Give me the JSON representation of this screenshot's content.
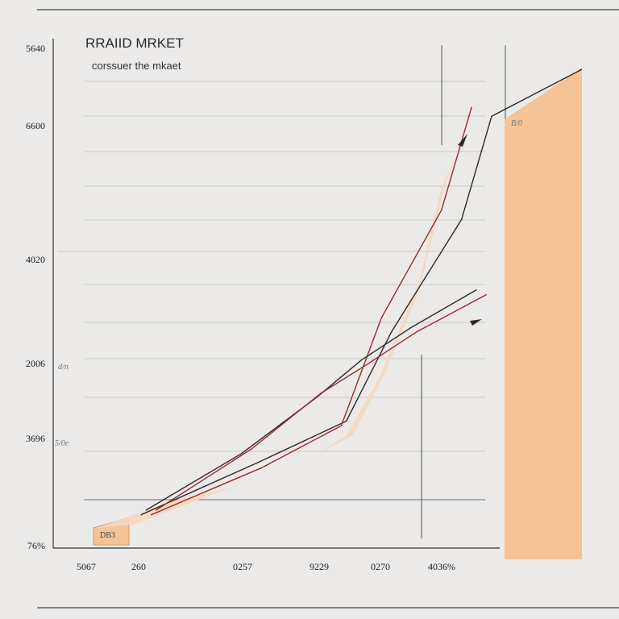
{
  "chart_data": {
    "type": "line",
    "title": "RRAIID MRKET",
    "subtitle": "corssuer the mkaet",
    "y_tick_labels": [
      "76%",
      "3696",
      "2006",
      "4020",
      "6600",
      "5640"
    ],
    "x_tick_labels": [
      "5067",
      "260",
      "0257",
      "9229",
      "0270",
      "4036%"
    ],
    "annotations": [
      {
        "text": "B/0",
        "tone": "inline"
      },
      {
        "text": "DB3",
        "tone": "box"
      },
      {
        "text": "d/n",
        "tone": "faint"
      },
      {
        "text": "5/0e",
        "tone": "faint"
      }
    ],
    "series": [
      {
        "values": [
          [
            0.12,
            0.05
          ],
          [
            0.35,
            0.16
          ],
          [
            0.53,
            0.25
          ],
          [
            0.62,
            0.44
          ],
          [
            0.76,
            0.68
          ],
          [
            0.82,
            0.9
          ],
          [
            1.0,
            1.0
          ]
        ]
      },
      {
        "values": [
          [
            0.14,
            0.05
          ],
          [
            0.36,
            0.15
          ],
          [
            0.52,
            0.24
          ],
          [
            0.6,
            0.47
          ],
          [
            0.72,
            0.7
          ],
          [
            0.78,
            0.92
          ]
        ]
      },
      {
        "values": [
          [
            0.13,
            0.06
          ],
          [
            0.32,
            0.18
          ],
          [
            0.47,
            0.3
          ],
          [
            0.56,
            0.38
          ],
          [
            0.66,
            0.45
          ],
          [
            0.79,
            0.53
          ]
        ]
      },
      {
        "values": [
          [
            0.15,
            0.06
          ],
          [
            0.34,
            0.19
          ],
          [
            0.48,
            0.31
          ],
          [
            0.57,
            0.37
          ],
          [
            0.67,
            0.44
          ],
          [
            0.81,
            0.52
          ]
        ]
      }
    ],
    "colors": {
      "background": "#ebeae9",
      "band": "#f5c396",
      "fill": "#f5d7bf",
      "line_dark": "#2f2a28",
      "line_red": "#9b2b2b",
      "grid": "#c9c9c9"
    },
    "grid": true
  }
}
